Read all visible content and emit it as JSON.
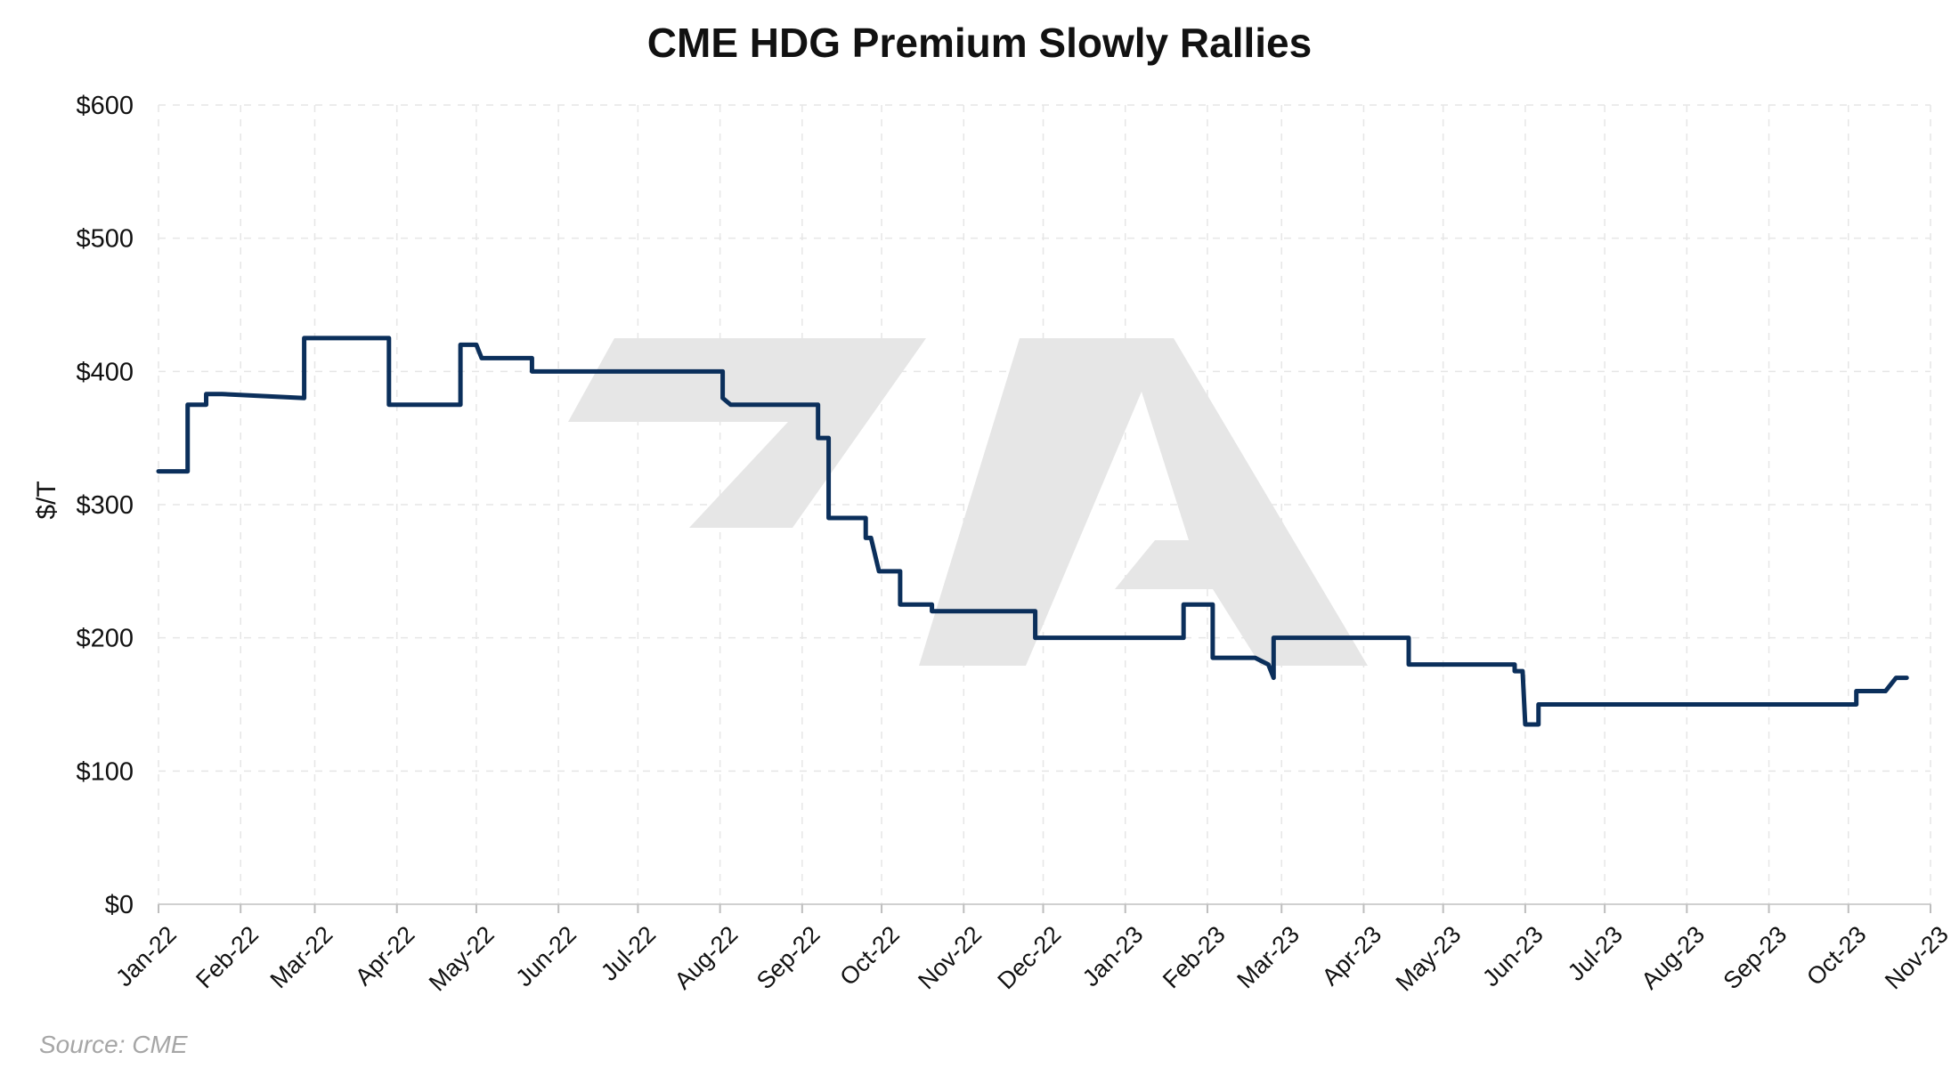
{
  "chart_data": {
    "type": "line",
    "title": "CME HDG Premium Slowly Rallies",
    "xlabel": "",
    "ylabel": "$/T",
    "ylim": [
      0,
      600
    ],
    "y_ticks": [
      "$0",
      "$100",
      "$200",
      "$300",
      "$400",
      "$500",
      "$600"
    ],
    "y_tick_values": [
      0,
      100,
      200,
      300,
      400,
      500,
      600
    ],
    "x_ticks": [
      "Jan-22",
      "Feb-22",
      "Mar-22",
      "Apr-22",
      "May-22",
      "Jun-22",
      "Jul-22",
      "Aug-22",
      "Sep-22",
      "Oct-22",
      "Nov-22",
      "Dec-22",
      "Jan-23",
      "Feb-23",
      "Mar-23",
      "Apr-23",
      "May-23",
      "Jun-23",
      "Jul-23",
      "Aug-23",
      "Sep-23",
      "Oct-23",
      "Nov-23"
    ],
    "x_tick_dates": [
      "2022-01-01",
      "2022-02-01",
      "2022-03-01",
      "2022-04-01",
      "2022-05-01",
      "2022-06-01",
      "2022-07-01",
      "2022-08-01",
      "2022-09-01",
      "2022-10-01",
      "2022-11-01",
      "2022-12-01",
      "2023-01-01",
      "2023-02-01",
      "2023-03-01",
      "2023-04-01",
      "2023-05-01",
      "2023-06-01",
      "2023-07-01",
      "2023-08-01",
      "2023-09-01",
      "2023-10-01",
      "2023-11-01"
    ],
    "xlim": [
      "2022-01-01",
      "2023-11-01"
    ],
    "grid": true,
    "legend": "none",
    "series": [
      {
        "color": "#0b2f5b",
        "points": [
          [
            "2022-01-01",
            325
          ],
          [
            "2022-01-12",
            325
          ],
          [
            "2022-01-12",
            375
          ],
          [
            "2022-01-19",
            375
          ],
          [
            "2022-01-19",
            383
          ],
          [
            "2022-01-25",
            383
          ],
          [
            "2022-02-25",
            380
          ],
          [
            "2022-02-25",
            425
          ],
          [
            "2022-03-29",
            425
          ],
          [
            "2022-03-29",
            375
          ],
          [
            "2022-04-25",
            375
          ],
          [
            "2022-04-25",
            420
          ],
          [
            "2022-05-01",
            420
          ],
          [
            "2022-05-03",
            410
          ],
          [
            "2022-05-22",
            410
          ],
          [
            "2022-05-22",
            400
          ],
          [
            "2022-08-02",
            400
          ],
          [
            "2022-08-02",
            380
          ],
          [
            "2022-08-05",
            375
          ],
          [
            "2022-09-07",
            375
          ],
          [
            "2022-09-07",
            350
          ],
          [
            "2022-09-11",
            350
          ],
          [
            "2022-09-11",
            290
          ],
          [
            "2022-09-25",
            290
          ],
          [
            "2022-09-25",
            275
          ],
          [
            "2022-09-27",
            275
          ],
          [
            "2022-09-30",
            250
          ],
          [
            "2022-10-08",
            250
          ],
          [
            "2022-10-08",
            225
          ],
          [
            "2022-10-20",
            225
          ],
          [
            "2022-10-20",
            220
          ],
          [
            "2022-11-28",
            220
          ],
          [
            "2022-11-28",
            200
          ],
          [
            "2023-01-23",
            200
          ],
          [
            "2023-01-23",
            225
          ],
          [
            "2023-02-03",
            225
          ],
          [
            "2023-02-03",
            185
          ],
          [
            "2023-02-19",
            185
          ],
          [
            "2023-02-24",
            180
          ],
          [
            "2023-02-26",
            170
          ],
          [
            "2023-02-26",
            200
          ],
          [
            "2023-04-18",
            200
          ],
          [
            "2023-04-18",
            180
          ],
          [
            "2023-05-28",
            180
          ],
          [
            "2023-05-28",
            175
          ],
          [
            "2023-05-31",
            175
          ],
          [
            "2023-06-01",
            135
          ],
          [
            "2023-06-06",
            135
          ],
          [
            "2023-06-06",
            150
          ],
          [
            "2023-10-04",
            150
          ],
          [
            "2023-10-04",
            160
          ],
          [
            "2023-10-15",
            160
          ],
          [
            "2023-10-19",
            170
          ],
          [
            "2023-10-23",
            170
          ]
        ]
      }
    ],
    "source": "Source: CME"
  }
}
